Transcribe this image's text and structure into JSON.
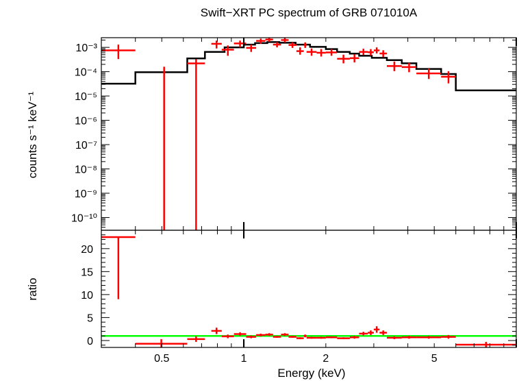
{
  "colors": {
    "data": "#ff0000",
    "model": "#000000",
    "unity": "#00ff00",
    "axes": "#000000"
  },
  "chart_data": [
    {
      "type": "scatter",
      "title": "Swift−XRT PC spectrum of GRB 071010A",
      "xlabel": "",
      "ylabel": "counts s⁻¹ keV⁻¹",
      "xscale": "log",
      "yscale": "log",
      "xlim": [
        0.3,
        10
      ],
      "ylim": [
        3e-11,
        0.0025
      ],
      "y_ticks": [
        {
          "value": 0.001,
          "label": "10⁻³"
        },
        {
          "value": 0.0001,
          "label": "10⁻⁴"
        },
        {
          "value": 1e-05,
          "label": "10⁻⁵"
        },
        {
          "value": 1e-06,
          "label": "10⁻⁶"
        },
        {
          "value": 1e-07,
          "label": "10⁻⁷"
        },
        {
          "value": 1e-08,
          "label": "10⁻⁸"
        },
        {
          "value": 1e-09,
          "label": "10⁻⁹"
        },
        {
          "value": 1e-10,
          "label": "10⁻¹⁰"
        }
      ],
      "series": [
        {
          "kind": "data",
          "points": [
            {
              "xlo": 0.3,
              "xhi": 0.4,
              "y": 0.00075,
              "ylo": 0.00033,
              "yhi": 0.0013
            },
            {
              "xlo": 0.51,
              "xhi": 0.51,
              "y": 0.00016,
              "ylo": 3e-11,
              "yhi": 0.00016
            },
            {
              "xlo": 0.62,
              "xhi": 0.72,
              "y": 0.00022,
              "ylo": 3e-11,
              "yhi": 0.00032
            },
            {
              "xlo": 0.76,
              "xhi": 0.83,
              "y": 0.0014,
              "ylo": 0.0009,
              "yhi": 0.0019
            },
            {
              "xlo": 0.83,
              "xhi": 0.92,
              "y": 0.0008,
              "ylo": 0.00045,
              "yhi": 0.0012
            },
            {
              "xlo": 0.92,
              "xhi": 1.02,
              "y": 0.00145,
              "ylo": 0.001,
              "yhi": 0.0019
            },
            {
              "xlo": 1.02,
              "xhi": 1.11,
              "y": 0.00095,
              "ylo": 0.00065,
              "yhi": 0.0013
            },
            {
              "xlo": 1.11,
              "xhi": 1.2,
              "y": 0.00185,
              "ylo": 0.0014,
              "yhi": 0.0023
            },
            {
              "xlo": 1.2,
              "xhi": 1.28,
              "y": 0.0021,
              "ylo": 0.0017,
              "yhi": 0.0025
            },
            {
              "xlo": 1.28,
              "xhi": 1.37,
              "y": 0.0013,
              "ylo": 0.001,
              "yhi": 0.00165
            },
            {
              "xlo": 1.37,
              "xhi": 1.46,
              "y": 0.002,
              "ylo": 0.0016,
              "yhi": 0.00245
            },
            {
              "xlo": 1.46,
              "xhi": 1.56,
              "y": 0.00125,
              "ylo": 0.00095,
              "yhi": 0.0016
            },
            {
              "xlo": 1.56,
              "xhi": 1.66,
              "y": 0.0007,
              "ylo": 0.0005,
              "yhi": 0.001
            },
            {
              "xlo": 1.66,
              "xhi": 1.7,
              "y": 0.00125,
              "ylo": 0.00095,
              "yhi": 0.0016
            },
            {
              "xlo": 1.7,
              "xhi": 1.85,
              "y": 0.00065,
              "ylo": 0.00045,
              "yhi": 0.0009
            },
            {
              "xlo": 1.85,
              "xhi": 2.0,
              "y": 0.0006,
              "ylo": 0.00042,
              "yhi": 0.00085
            },
            {
              "xlo": 2.0,
              "xhi": 2.2,
              "y": 0.00062,
              "ylo": 0.00045,
              "yhi": 0.00085
            },
            {
              "xlo": 2.2,
              "xhi": 2.45,
              "y": 0.00034,
              "ylo": 0.00022,
              "yhi": 0.0005
            },
            {
              "xlo": 2.45,
              "xhi": 2.65,
              "y": 0.00036,
              "ylo": 0.00024,
              "yhi": 0.00052
            },
            {
              "xlo": 2.65,
              "xhi": 2.85,
              "y": 0.00065,
              "ylo": 0.00048,
              "yhi": 0.00088
            },
            {
              "xlo": 2.85,
              "xhi": 3.0,
              "y": 0.00063,
              "ylo": 0.00046,
              "yhi": 0.00085
            },
            {
              "xlo": 3.0,
              "xhi": 3.15,
              "y": 0.00075,
              "ylo": 0.00056,
              "yhi": 0.001
            },
            {
              "xlo": 3.15,
              "xhi": 3.35,
              "y": 0.00056,
              "ylo": 0.0004,
              "yhi": 0.00076
            },
            {
              "xlo": 3.35,
              "xhi": 3.8,
              "y": 0.00017,
              "ylo": 0.000105,
              "yhi": 0.00026
            },
            {
              "xlo": 3.8,
              "xhi": 4.3,
              "y": 0.000155,
              "ylo": 9.5e-05,
              "yhi": 0.00023
            },
            {
              "xlo": 4.3,
              "xhi": 5.3,
              "y": 8.5e-05,
              "ylo": 5e-05,
              "yhi": 0.000135
            },
            {
              "xlo": 5.3,
              "xhi": 6.0,
              "y": 6.2e-05,
              "ylo": 3.3e-05,
              "yhi": 0.000105
            }
          ]
        },
        {
          "kind": "model",
          "steps": [
            {
              "xlo": 0.3,
              "xhi": 0.4,
              "y": 3.2e-05
            },
            {
              "xlo": 0.4,
              "xhi": 0.62,
              "y": 9.5e-05
            },
            {
              "xlo": 0.62,
              "xhi": 0.72,
              "y": 0.00035
            },
            {
              "xlo": 0.72,
              "xhi": 0.85,
              "y": 0.00065
            },
            {
              "xlo": 0.85,
              "xhi": 1.0,
              "y": 0.001
            },
            {
              "xlo": 1.0,
              "xhi": 1.1,
              "y": 0.0013
            },
            {
              "xlo": 1.1,
              "xhi": 1.22,
              "y": 0.0015
            },
            {
              "xlo": 1.22,
              "xhi": 1.35,
              "y": 0.00165
            },
            {
              "xlo": 1.35,
              "xhi": 1.55,
              "y": 0.00155
            },
            {
              "xlo": 1.55,
              "xhi": 1.75,
              "y": 0.0013
            },
            {
              "xlo": 1.75,
              "xhi": 2.0,
              "y": 0.00105
            },
            {
              "xlo": 2.0,
              "xhi": 2.2,
              "y": 0.00085
            },
            {
              "xlo": 2.2,
              "xhi": 2.45,
              "y": 0.00065
            },
            {
              "xlo": 2.45,
              "xhi": 2.65,
              "y": 0.00055
            },
            {
              "xlo": 2.65,
              "xhi": 2.95,
              "y": 0.00045
            },
            {
              "xlo": 2.95,
              "xhi": 3.35,
              "y": 0.00037
            },
            {
              "xlo": 3.35,
              "xhi": 3.8,
              "y": 0.0003
            },
            {
              "xlo": 3.8,
              "xhi": 4.3,
              "y": 0.00022
            },
            {
              "xlo": 4.3,
              "xhi": 5.3,
              "y": 0.00013
            },
            {
              "xlo": 5.3,
              "xhi": 6.0,
              "y": 8e-05
            },
            {
              "xlo": 6.0,
              "xhi": 10.0,
              "y": 1.7e-05
            }
          ]
        }
      ]
    },
    {
      "type": "scatter",
      "title": "",
      "xlabel": "Energy (keV)",
      "ylabel": "ratio",
      "xscale": "log",
      "yscale": "linear",
      "xlim": [
        0.3,
        10
      ],
      "ylim": [
        -1.5,
        24
      ],
      "x_ticks": [
        0.5,
        1,
        2,
        5
      ],
      "y_ticks": [
        0,
        5,
        10,
        15,
        20
      ],
      "reference_line": 1,
      "series": [
        {
          "kind": "data",
          "points": [
            {
              "xlo": 0.3,
              "xhi": 0.4,
              "y": 22.5,
              "ylo": 9.0,
              "yhi": 22.5
            },
            {
              "xlo": 0.4,
              "xhi": 0.62,
              "y": -0.7,
              "ylo": -1.5,
              "yhi": 0.3
            },
            {
              "xlo": 0.62,
              "xhi": 0.72,
              "y": 0.3,
              "ylo": -0.3,
              "yhi": 0.9
            },
            {
              "xlo": 0.76,
              "xhi": 0.83,
              "y": 2.1,
              "ylo": 1.4,
              "yhi": 2.8
            },
            {
              "xlo": 0.83,
              "xhi": 0.92,
              "y": 0.9,
              "ylo": 0.5,
              "yhi": 1.3
            },
            {
              "xlo": 0.92,
              "xhi": 1.02,
              "y": 1.4,
              "ylo": 1.0,
              "yhi": 1.8
            },
            {
              "xlo": 1.02,
              "xhi": 1.11,
              "y": 0.8,
              "ylo": 0.5,
              "yhi": 1.1
            },
            {
              "xlo": 1.11,
              "xhi": 1.2,
              "y": 1.2,
              "ylo": 0.9,
              "yhi": 1.5
            },
            {
              "xlo": 1.2,
              "xhi": 1.28,
              "y": 1.3,
              "ylo": 1.0,
              "yhi": 1.6
            },
            {
              "xlo": 1.28,
              "xhi": 1.37,
              "y": 0.8,
              "ylo": 0.6,
              "yhi": 1.0
            },
            {
              "xlo": 1.37,
              "xhi": 1.46,
              "y": 1.3,
              "ylo": 1.0,
              "yhi": 1.6
            },
            {
              "xlo": 1.46,
              "xhi": 1.56,
              "y": 0.8,
              "ylo": 0.6,
              "yhi": 1.0
            },
            {
              "xlo": 1.56,
              "xhi": 1.66,
              "y": 0.5,
              "ylo": 0.3,
              "yhi": 0.7
            },
            {
              "xlo": 1.66,
              "xhi": 1.7,
              "y": 1.0,
              "ylo": 0.7,
              "yhi": 1.3
            },
            {
              "xlo": 1.7,
              "xhi": 1.85,
              "y": 0.6,
              "ylo": 0.4,
              "yhi": 0.8
            },
            {
              "xlo": 1.85,
              "xhi": 2.0,
              "y": 0.6,
              "ylo": 0.4,
              "yhi": 0.8
            },
            {
              "xlo": 2.0,
              "xhi": 2.2,
              "y": 0.7,
              "ylo": 0.5,
              "yhi": 0.9
            },
            {
              "xlo": 2.2,
              "xhi": 2.45,
              "y": 0.5,
              "ylo": 0.3,
              "yhi": 0.7
            },
            {
              "xlo": 2.45,
              "xhi": 2.65,
              "y": 0.7,
              "ylo": 0.4,
              "yhi": 1.0
            },
            {
              "xlo": 2.65,
              "xhi": 2.85,
              "y": 1.5,
              "ylo": 1.1,
              "yhi": 1.9
            },
            {
              "xlo": 2.85,
              "xhi": 3.0,
              "y": 1.7,
              "ylo": 1.2,
              "yhi": 2.2
            },
            {
              "xlo": 3.0,
              "xhi": 3.15,
              "y": 2.4,
              "ylo": 1.7,
              "yhi": 3.1
            },
            {
              "xlo": 3.15,
              "xhi": 3.35,
              "y": 1.7,
              "ylo": 1.2,
              "yhi": 2.2
            },
            {
              "xlo": 3.35,
              "xhi": 3.8,
              "y": 0.6,
              "ylo": 0.3,
              "yhi": 0.9
            },
            {
              "xlo": 3.8,
              "xhi": 4.3,
              "y": 0.7,
              "ylo": 0.4,
              "yhi": 1.0
            },
            {
              "xlo": 4.3,
              "xhi": 5.3,
              "y": 0.7,
              "ylo": 0.4,
              "yhi": 1.0
            },
            {
              "xlo": 5.3,
              "xhi": 6.0,
              "y": 0.8,
              "ylo": 0.4,
              "yhi": 1.2
            },
            {
              "xlo": 6.0,
              "xhi": 10.0,
              "y": -0.9,
              "ylo": -1.5,
              "yhi": -0.3
            }
          ]
        }
      ]
    }
  ]
}
